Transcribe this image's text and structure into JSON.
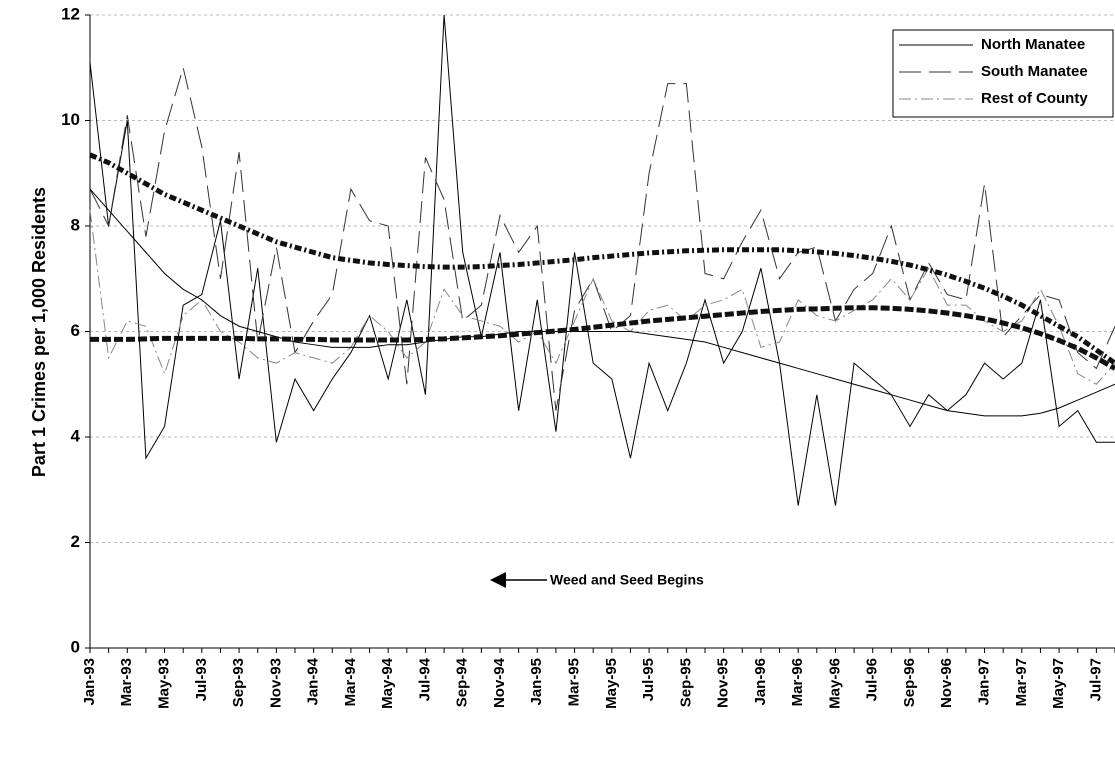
{
  "chart_data": {
    "type": "line",
    "y_label": "Part 1 Crimes per 1,000 Residents",
    "annotation": "Weed and Seed Begins",
    "categories": [
      "Jan-93",
      null,
      "Mar-93",
      null,
      "May-93",
      null,
      "Jul-93",
      null,
      "Sep-93",
      null,
      "Nov-93",
      null,
      "Jan-94",
      null,
      "Mar-94",
      null,
      "May-94",
      null,
      "Jul-94",
      null,
      "Sep-94",
      null,
      "Nov-94",
      null,
      "Jan-95",
      null,
      "Mar-95",
      null,
      "May-95",
      null,
      "Jul-95",
      null,
      "Sep-95",
      null,
      "Nov-95",
      null,
      "Jan-96",
      null,
      "Mar-96",
      null,
      "May-96",
      null,
      "Jul-96",
      null,
      "Sep-96",
      null,
      "Nov-96",
      null,
      "Jan-97",
      null,
      "Mar-97",
      null,
      "May-97",
      null,
      "Jul-97",
      null
    ],
    "ylim": [
      0,
      12
    ],
    "yticks": [
      0,
      2,
      4,
      6,
      8,
      10,
      12
    ],
    "grid": true,
    "legend": "top-right",
    "series": [
      {
        "name": "North Manatee",
        "color": "#000000",
        "dash": "none",
        "width": 1,
        "values": [
          11.1,
          8.0,
          10.0,
          3.6,
          4.2,
          6.5,
          6.7,
          8.1,
          5.1,
          7.2,
          3.9,
          5.1,
          4.5,
          5.1,
          5.6,
          6.3,
          5.1,
          6.6,
          4.8,
          12.0,
          7.5,
          5.9,
          7.5,
          4.5,
          6.6,
          4.1,
          7.5,
          5.4,
          5.1,
          3.6,
          5.4,
          4.5,
          5.4,
          6.6,
          5.4,
          6.0,
          7.2,
          5.4,
          2.7,
          4.8,
          2.7,
          5.4,
          5.1,
          4.8,
          4.2,
          4.8,
          4.5,
          4.8,
          5.4,
          5.1,
          5.4,
          6.6,
          4.2,
          4.5,
          3.9,
          3.9
        ]
      },
      {
        "name": "South Manatee",
        "color": "#333333",
        "dash": "22 8",
        "width": 1,
        "values": [
          8.7,
          8.0,
          10.1,
          7.8,
          9.8,
          11.0,
          9.5,
          7.0,
          9.4,
          5.8,
          7.6,
          5.6,
          6.2,
          6.7,
          8.7,
          8.1,
          8.0,
          5.0,
          9.3,
          8.5,
          6.2,
          6.5,
          8.2,
          7.5,
          8.0,
          4.5,
          6.4,
          7.0,
          6.0,
          6.3,
          9.0,
          10.7,
          10.7,
          7.1,
          7.0,
          7.7,
          8.3,
          7.0,
          7.5,
          7.6,
          6.2,
          6.8,
          7.1,
          8.0,
          6.6,
          7.3,
          6.7,
          6.6,
          8.8,
          5.9,
          6.3,
          6.7,
          6.6,
          5.6,
          5.3,
          6.1
        ]
      },
      {
        "name": "Rest of County",
        "color": "#888888",
        "dash": "12 4 2 4",
        "width": 1,
        "values": [
          8.3,
          5.5,
          6.2,
          6.1,
          5.2,
          6.3,
          6.6,
          6.0,
          5.8,
          5.5,
          5.4,
          5.6,
          5.5,
          5.4,
          5.7,
          6.3,
          6.0,
          5.5,
          5.8,
          6.8,
          6.3,
          6.2,
          6.1,
          5.8,
          6.0,
          5.4,
          6.2,
          7.0,
          6.2,
          6.0,
          6.4,
          6.5,
          6.2,
          6.5,
          6.6,
          6.8,
          5.7,
          5.8,
          6.6,
          6.3,
          6.2,
          6.4,
          6.6,
          7.0,
          6.6,
          7.2,
          6.5,
          6.5,
          6.2,
          6.0,
          6.2,
          6.8,
          6.1,
          5.2,
          5.0,
          5.4
        ]
      }
    ],
    "trendlines": [
      {
        "color": "#000000",
        "dash": "none",
        "width": 1,
        "values": [
          8.7,
          8.3,
          7.9,
          7.5,
          7.1,
          6.8,
          6.6,
          6.3,
          6.1,
          6.0,
          5.9,
          5.8,
          5.75,
          5.7,
          5.7,
          5.7,
          5.75,
          5.75,
          5.8,
          5.85,
          5.9,
          5.9,
          5.95,
          6.0,
          6.0,
          6.0,
          6.0,
          6.0,
          6.0,
          6.0,
          5.95,
          5.9,
          5.85,
          5.8,
          5.7,
          5.6,
          5.5,
          5.4,
          5.3,
          5.2,
          5.1,
          5.0,
          4.9,
          4.8,
          4.7,
          4.6,
          4.5,
          4.45,
          4.4,
          4.4,
          4.4,
          4.45,
          4.55,
          4.7,
          4.85,
          5.0
        ]
      },
      {
        "color": "#111111",
        "dash": "7 3 2 3",
        "width": 5,
        "values": [
          9.35,
          9.2,
          9.0,
          8.8,
          8.6,
          8.45,
          8.3,
          8.15,
          8.0,
          7.85,
          7.7,
          7.6,
          7.5,
          7.4,
          7.35,
          7.3,
          7.27,
          7.25,
          7.23,
          7.22,
          7.22,
          7.23,
          7.25,
          7.27,
          7.3,
          7.33,
          7.36,
          7.4,
          7.43,
          7.46,
          7.49,
          7.51,
          7.53,
          7.54,
          7.55,
          7.55,
          7.55,
          7.55,
          7.53,
          7.51,
          7.48,
          7.44,
          7.39,
          7.33,
          7.26,
          7.17,
          7.07,
          6.95,
          6.82,
          6.67,
          6.5,
          6.3,
          6.1,
          5.9,
          5.65,
          5.4
        ]
      },
      {
        "color": "#111111",
        "dash": "9 3",
        "width": 5,
        "values": [
          5.85,
          5.85,
          5.85,
          5.86,
          5.87,
          5.87,
          5.87,
          5.87,
          5.87,
          5.86,
          5.86,
          5.85,
          5.85,
          5.84,
          5.84,
          5.84,
          5.84,
          5.84,
          5.85,
          5.86,
          5.88,
          5.9,
          5.92,
          5.95,
          5.98,
          6.01,
          6.04,
          6.08,
          6.12,
          6.16,
          6.2,
          6.23,
          6.26,
          6.29,
          6.32,
          6.35,
          6.38,
          6.4,
          6.42,
          6.43,
          6.44,
          6.45,
          6.45,
          6.44,
          6.42,
          6.39,
          6.35,
          6.3,
          6.24,
          6.16,
          6.07,
          5.96,
          5.83,
          5.68,
          5.5,
          5.3
        ]
      }
    ]
  }
}
